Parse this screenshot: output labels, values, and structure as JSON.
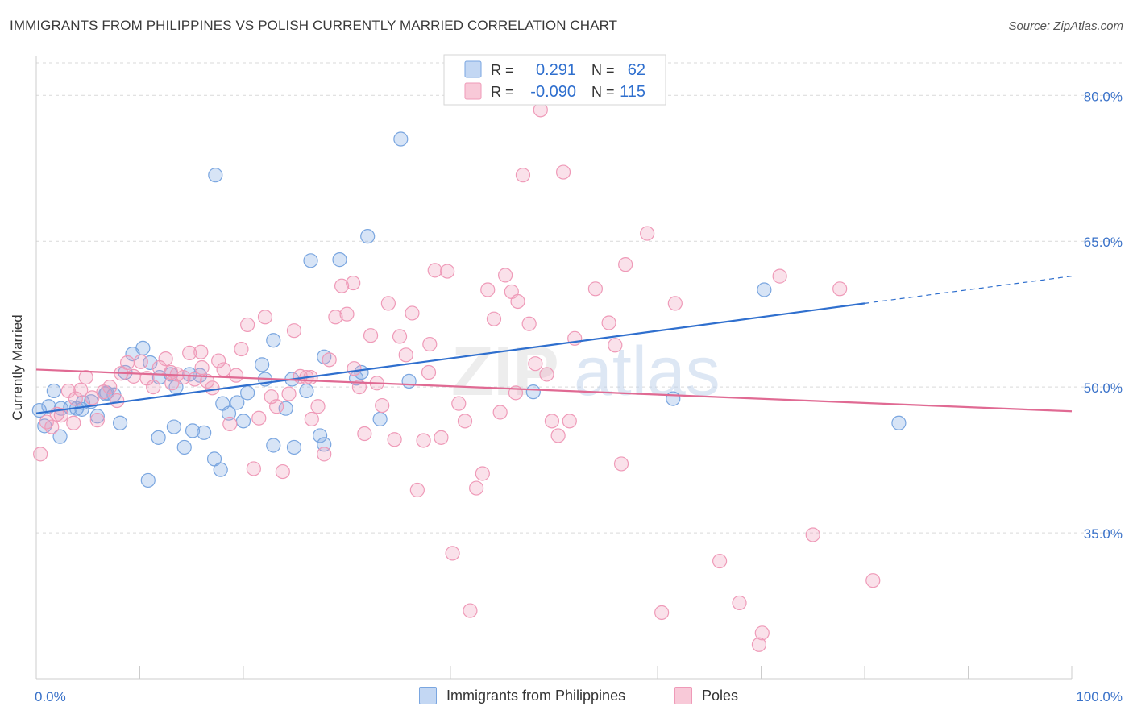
{
  "header": {
    "title": "IMMIGRANTS FROM PHILIPPINES VS POLISH CURRENTLY MARRIED CORRELATION CHART",
    "source": "Source: ZipAtlas.com"
  },
  "watermark": {
    "zip": "ZIP",
    "atlas": "atlas"
  },
  "legend_top": {
    "r_label": "R =",
    "n_label": "N =",
    "rows": [
      {
        "r": "0.291",
        "n": "62",
        "color": "#7aa6e0"
      },
      {
        "r": "-0.090",
        "n": "115",
        "color": "#ef9ab8"
      }
    ]
  },
  "chart_data": {
    "type": "scatter",
    "title": "IMMIGRANTS FROM PHILIPPINES VS POLISH CURRENTLY MARRIED CORRELATION CHART",
    "xlabel": "",
    "ylabel": "Currently Married",
    "xlim": [
      0,
      100
    ],
    "ylim": [
      20,
      84
    ],
    "x_tick_labels": [
      "0.0%",
      "100.0%"
    ],
    "y_ticks": [
      35,
      50,
      65,
      80
    ],
    "y_tick_labels": [
      "35.0%",
      "50.0%",
      "65.0%",
      "80.0%"
    ],
    "grid": true,
    "legend_position": "top-center",
    "series": [
      {
        "name": "Immigrants from Philippines",
        "color": "#7aa6e0",
        "line_color": "#2f6fce",
        "r": 0.291,
        "n": 62,
        "trend": {
          "x0": 0,
          "y0": 47.3,
          "x1": 80,
          "y1": 58.6,
          "dashed_to_x": 100,
          "dashed_to_y": 61.4
        },
        "points": [
          [
            0.3,
            47.6
          ],
          [
            1.2,
            48.0
          ],
          [
            1.7,
            49.6
          ],
          [
            2.4,
            47.8
          ],
          [
            3.3,
            47.9
          ],
          [
            3.9,
            47.8
          ],
          [
            4.5,
            48.4
          ],
          [
            5.3,
            48.5
          ],
          [
            5.9,
            47.0
          ],
          [
            6.8,
            49.4
          ],
          [
            7.5,
            49.2
          ],
          [
            8.1,
            46.3
          ],
          [
            9.3,
            53.4
          ],
          [
            10.3,
            54.0
          ],
          [
            11.0,
            52.5
          ],
          [
            11.9,
            51.0
          ],
          [
            13.0,
            51.3
          ],
          [
            13.5,
            50.0
          ],
          [
            14.8,
            51.3
          ],
          [
            15.8,
            51.2
          ],
          [
            17.3,
            71.8
          ],
          [
            18.0,
            48.3
          ],
          [
            18.6,
            47.3
          ],
          [
            19.4,
            48.4
          ],
          [
            20.0,
            46.5
          ],
          [
            20.4,
            49.4
          ],
          [
            21.8,
            52.3
          ],
          [
            22.1,
            50.8
          ],
          [
            22.9,
            54.8
          ],
          [
            24.1,
            47.8
          ],
          [
            24.7,
            50.8
          ],
          [
            26.1,
            49.6
          ],
          [
            26.5,
            63.0
          ],
          [
            27.8,
            53.1
          ],
          [
            29.3,
            63.1
          ],
          [
            31.4,
            51.5
          ],
          [
            32.0,
            65.5
          ],
          [
            33.2,
            46.7
          ],
          [
            35.2,
            75.5
          ],
          [
            36.0,
            50.6
          ],
          [
            0.8,
            46.0
          ],
          [
            2.3,
            44.9
          ],
          [
            11.8,
            44.8
          ],
          [
            13.3,
            45.9
          ],
          [
            14.3,
            43.8
          ],
          [
            15.1,
            45.5
          ],
          [
            16.2,
            45.3
          ],
          [
            17.2,
            42.6
          ],
          [
            17.8,
            41.5
          ],
          [
            10.8,
            40.4
          ],
          [
            22.9,
            44.0
          ],
          [
            24.9,
            43.8
          ],
          [
            27.4,
            45.0
          ],
          [
            27.8,
            44.1
          ],
          [
            30.9,
            50.9
          ],
          [
            48.0,
            49.5
          ],
          [
            61.5,
            48.8
          ],
          [
            70.3,
            60.0
          ],
          [
            83.3,
            46.3
          ],
          [
            6.7,
            49.3
          ],
          [
            8.6,
            51.5
          ],
          [
            4.4,
            47.7
          ]
        ]
      },
      {
        "name": "Poles",
        "color": "#ef9ab8",
        "line_color": "#e06a93",
        "r": -0.09,
        "n": 115,
        "trend": {
          "x0": 0,
          "y0": 51.8,
          "x1": 100,
          "y1": 47.5
        },
        "points": [
          [
            0.4,
            43.1
          ],
          [
            1.0,
            46.4
          ],
          [
            1.5,
            45.9
          ],
          [
            2.4,
            47.1
          ],
          [
            3.1,
            49.6
          ],
          [
            3.8,
            48.8
          ],
          [
            4.3,
            49.7
          ],
          [
            4.8,
            51.0
          ],
          [
            5.4,
            48.9
          ],
          [
            5.9,
            46.6
          ],
          [
            6.5,
            49.5
          ],
          [
            7.1,
            50.0
          ],
          [
            7.8,
            48.6
          ],
          [
            8.2,
            51.4
          ],
          [
            8.8,
            52.5
          ],
          [
            9.4,
            51.1
          ],
          [
            10.1,
            52.6
          ],
          [
            10.7,
            50.9
          ],
          [
            11.3,
            50.0
          ],
          [
            11.9,
            52.0
          ],
          [
            12.5,
            52.9
          ],
          [
            13.1,
            50.4
          ],
          [
            13.6,
            51.3
          ],
          [
            14.2,
            51.0
          ],
          [
            14.8,
            53.5
          ],
          [
            15.3,
            50.8
          ],
          [
            15.9,
            53.6
          ],
          [
            16.5,
            50.6
          ],
          [
            17.0,
            49.9
          ],
          [
            17.6,
            52.7
          ],
          [
            18.1,
            51.8
          ],
          [
            18.7,
            46.2
          ],
          [
            19.3,
            51.2
          ],
          [
            19.8,
            53.9
          ],
          [
            20.4,
            56.4
          ],
          [
            21.0,
            41.6
          ],
          [
            21.5,
            46.8
          ],
          [
            22.1,
            57.2
          ],
          [
            22.7,
            49.0
          ],
          [
            23.2,
            48.0
          ],
          [
            23.8,
            41.3
          ],
          [
            24.4,
            49.3
          ],
          [
            24.9,
            55.8
          ],
          [
            25.5,
            51.1
          ],
          [
            26.1,
            51.0
          ],
          [
            26.6,
            46.7
          ],
          [
            27.2,
            48.0
          ],
          [
            27.8,
            43.1
          ],
          [
            28.3,
            52.8
          ],
          [
            28.9,
            57.2
          ],
          [
            29.5,
            60.4
          ],
          [
            30.0,
            57.5
          ],
          [
            30.6,
            60.7
          ],
          [
            31.2,
            50.0
          ],
          [
            31.7,
            45.2
          ],
          [
            32.3,
            55.3
          ],
          [
            32.9,
            50.4
          ],
          [
            33.4,
            48.1
          ],
          [
            34.0,
            58.6
          ],
          [
            34.6,
            44.6
          ],
          [
            35.1,
            55.2
          ],
          [
            35.7,
            53.3
          ],
          [
            36.3,
            57.6
          ],
          [
            36.8,
            39.4
          ],
          [
            37.4,
            44.5
          ],
          [
            38.0,
            54.4
          ],
          [
            38.5,
            62.0
          ],
          [
            39.1,
            44.8
          ],
          [
            39.7,
            61.9
          ],
          [
            40.2,
            32.9
          ],
          [
            40.8,
            48.3
          ],
          [
            41.4,
            46.5
          ],
          [
            41.9,
            27.0
          ],
          [
            42.5,
            39.6
          ],
          [
            43.1,
            41.1
          ],
          [
            43.6,
            60.0
          ],
          [
            44.2,
            57.0
          ],
          [
            44.8,
            47.4
          ],
          [
            45.3,
            61.5
          ],
          [
            45.9,
            59.8
          ],
          [
            46.5,
            58.8
          ],
          [
            47.0,
            71.8
          ],
          [
            47.6,
            56.5
          ],
          [
            48.2,
            52.4
          ],
          [
            48.7,
            78.5
          ],
          [
            49.3,
            51.3
          ],
          [
            49.8,
            46.5
          ],
          [
            50.4,
            45.0
          ],
          [
            50.9,
            72.1
          ],
          [
            51.5,
            46.5
          ],
          [
            52.0,
            55.0
          ],
          [
            54.0,
            60.1
          ],
          [
            55.3,
            56.6
          ],
          [
            55.9,
            54.3
          ],
          [
            56.5,
            42.1
          ],
          [
            56.9,
            62.6
          ],
          [
            59.0,
            65.8
          ],
          [
            60.4,
            26.8
          ],
          [
            61.7,
            58.6
          ],
          [
            66.0,
            32.1
          ],
          [
            67.9,
            27.8
          ],
          [
            69.8,
            23.5
          ],
          [
            70.1,
            24.7
          ],
          [
            71.8,
            61.4
          ],
          [
            75.0,
            34.8
          ],
          [
            77.6,
            60.1
          ],
          [
            80.8,
            30.1
          ],
          [
            2.0,
            47.2
          ],
          [
            3.6,
            46.3
          ],
          [
            13.0,
            51.5
          ],
          [
            16.0,
            52.0
          ],
          [
            26.5,
            51.0
          ],
          [
            30.7,
            51.9
          ],
          [
            37.9,
            51.5
          ],
          [
            46.3,
            49.4
          ]
        ]
      }
    ]
  },
  "legend_bottom": [
    {
      "label": "Immigrants from Philippines",
      "color": "#7aa6e0"
    },
    {
      "label": "Poles",
      "color": "#ef9ab8"
    }
  ]
}
